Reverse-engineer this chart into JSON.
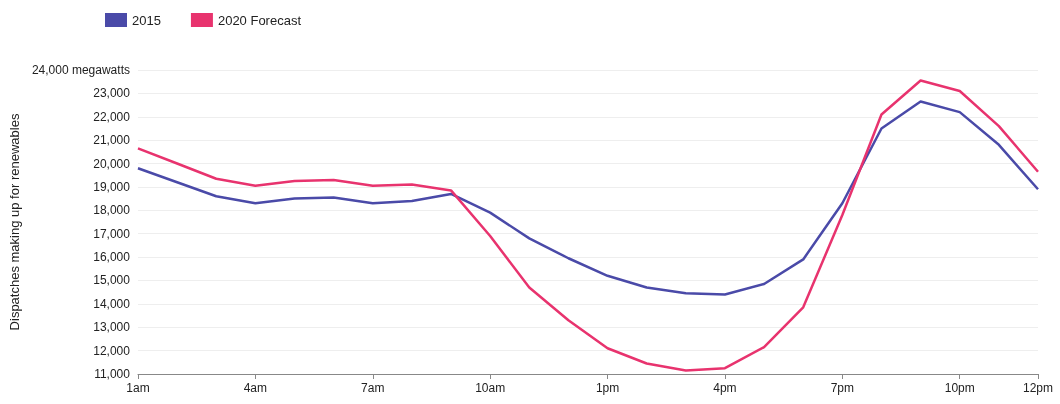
{
  "chart_data": {
    "type": "line",
    "ylabel": "Dispatches making up for renewables",
    "categories": [
      "1am",
      null,
      null,
      "4am",
      null,
      null,
      "7am",
      null,
      null,
      "10am",
      null,
      null,
      "1pm",
      null,
      null,
      "4pm",
      null,
      null,
      "7pm",
      null,
      null,
      "10pm",
      null,
      "12pm"
    ],
    "series": [
      {
        "name": "2015",
        "color": "#4a4aa8",
        "values": [
          19800,
          19200,
          18600,
          18300,
          18500,
          18550,
          18300,
          18400,
          18700,
          17900,
          16800,
          15950,
          15200,
          14700,
          14450,
          14400,
          14850,
          15900,
          18300,
          21500,
          22650,
          22200,
          20800,
          18900
        ]
      },
      {
        "name": "2020 Forecast",
        "color": "#e8336e",
        "values": [
          20650,
          20000,
          19350,
          19050,
          19250,
          19300,
          19050,
          19100,
          18850,
          16900,
          14700,
          13300,
          12100,
          11450,
          11150,
          11250,
          12150,
          13850,
          17800,
          22100,
          23550,
          23100,
          21600,
          19650
        ]
      }
    ],
    "ylim": [
      11000,
      24000
    ],
    "yticks": [
      {
        "value": 11000,
        "label": "11,000"
      },
      {
        "value": 12000,
        "label": "12,000"
      },
      {
        "value": 13000,
        "label": "13,000"
      },
      {
        "value": 14000,
        "label": "14,000"
      },
      {
        "value": 15000,
        "label": "15,000"
      },
      {
        "value": 16000,
        "label": "16,000"
      },
      {
        "value": 17000,
        "label": "17,000"
      },
      {
        "value": 18000,
        "label": "18,000"
      },
      {
        "value": 19000,
        "label": "19,000"
      },
      {
        "value": 20000,
        "label": "20,000"
      },
      {
        "value": 21000,
        "label": "21,000"
      },
      {
        "value": 22000,
        "label": "22,000"
      },
      {
        "value": 23000,
        "label": "23,000"
      },
      {
        "value": 24000,
        "label": "24,000 megawatts"
      }
    ],
    "grid": "y",
    "legend": "top left",
    "marker": "none",
    "line_style": "solid"
  }
}
